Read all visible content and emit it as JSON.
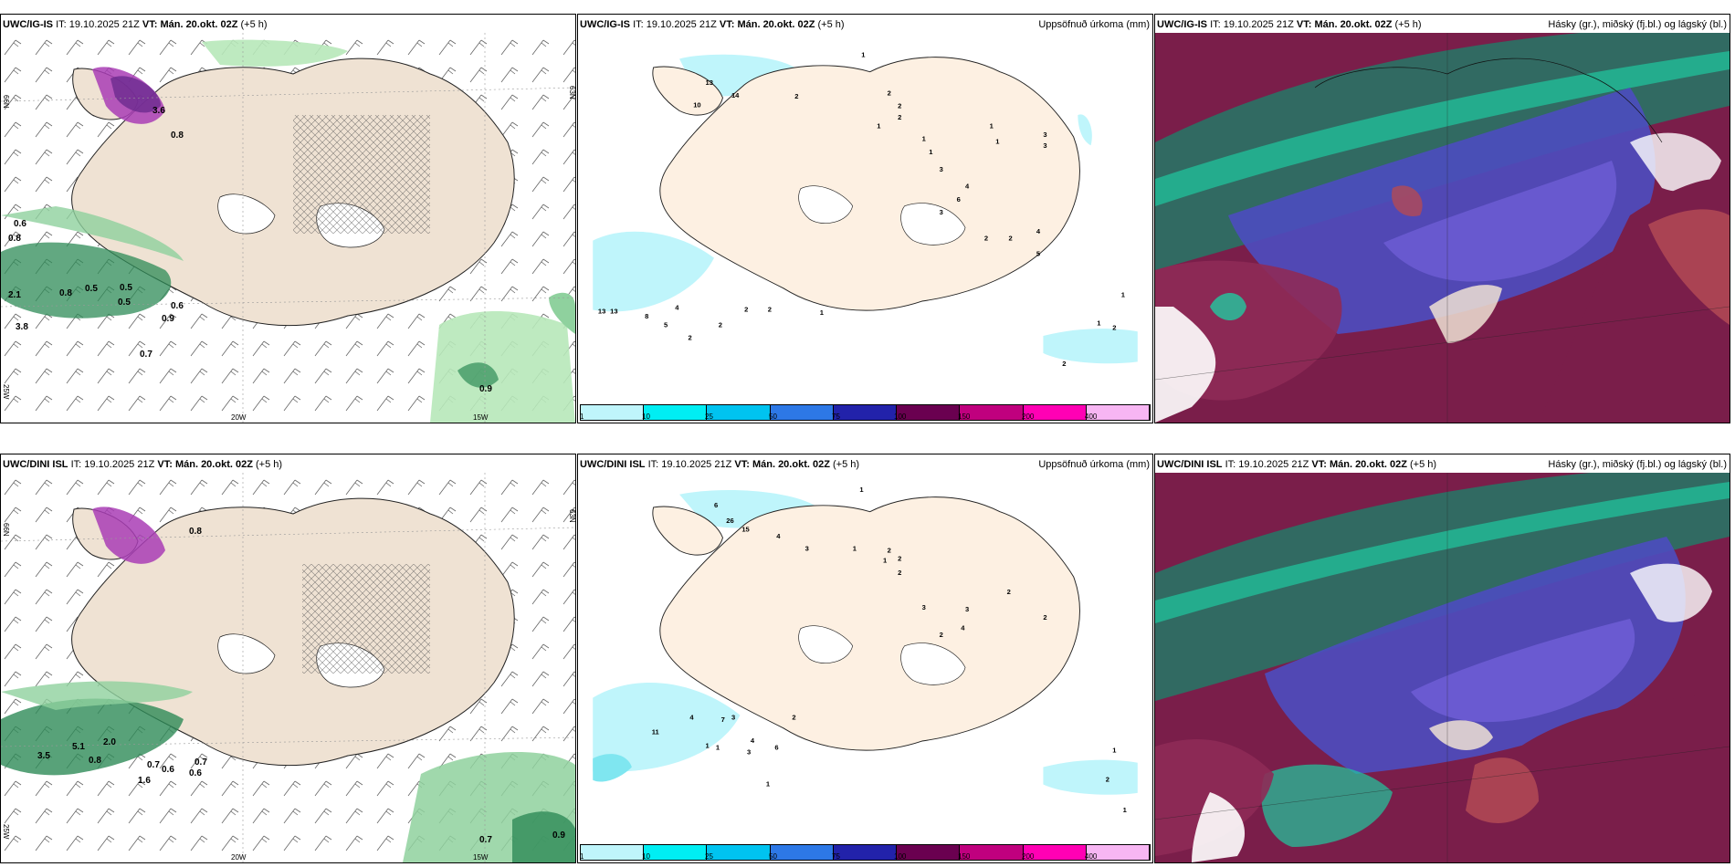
{
  "rows": [
    {
      "model": "UWC/IG-IS",
      "it_label": "IT:",
      "it": "19.10.2025 21Z",
      "vt_label": "VT:",
      "vt": "Mán. 20.okt. 02Z",
      "lead": "(+5 h)"
    },
    {
      "model": "UWC/DINI ISL",
      "it_label": "IT:",
      "it": "19.10.2025 21Z",
      "vt_label": "VT:",
      "vt": "Mán. 20.okt. 02Z",
      "lead": "(+5 h)"
    }
  ],
  "precip_title": "Uppsöfnuð úrkoma (mm)",
  "cloud_title": "Hásky (gr.), miðský (fj.bl.) og lágský (bl.)",
  "lon_labels": [
    "20W",
    "15W",
    "25W"
  ],
  "lat_labels": [
    "66N",
    "63N"
  ],
  "colorbar": {
    "ticks": [
      "1",
      "10",
      "25",
      "50",
      "75",
      "100",
      "150",
      "200",
      "400"
    ],
    "colors": [
      "#bff5fb",
      "#00eef3",
      "#00c3f0",
      "#2d78e6",
      "#2222aa",
      "#6a0050",
      "#c0007e",
      "#ff00b4",
      "#f7b6f3"
    ]
  },
  "wind_values_top": [
    "0.6",
    "0.8",
    "2.1",
    "3.8",
    "0.8",
    "0.5",
    "0.5",
    "0.5",
    "0.6",
    "0.9",
    "0.7",
    "0.9",
    "3.6",
    "0.8"
  ],
  "wind_values_bottom": [
    "0.8",
    "3.5",
    "5.1",
    "0.8",
    "2.0",
    "0.7",
    "0.6",
    "0.7",
    "0.6",
    "1.6",
    "0.7",
    "0.9"
  ],
  "precip_values_top": [
    "1",
    "10",
    "13",
    "14",
    "2",
    "2",
    "2",
    "1",
    "1",
    "2",
    "3",
    "1",
    "4",
    "6",
    "3",
    "3",
    "1",
    "1",
    "13",
    "13",
    "8",
    "4",
    "5",
    "2",
    "2",
    "2",
    "2",
    "1",
    "3",
    "2",
    "2",
    "4",
    "5",
    "1",
    "1",
    "2",
    "2"
  ],
  "precip_values_bottom": [
    "1",
    "6",
    "26",
    "15",
    "4",
    "3",
    "2",
    "1",
    "1",
    "2",
    "2",
    "3",
    "3",
    "4",
    "2",
    "2",
    "2",
    "11",
    "4",
    "7",
    "3",
    "4",
    "3",
    "6",
    "1",
    "1",
    "2",
    "1",
    "1",
    "2",
    "1"
  ]
}
